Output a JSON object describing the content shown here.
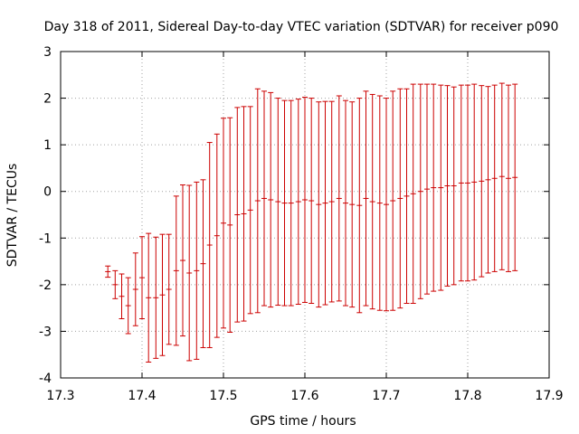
{
  "chart_data": {
    "type": "scatter",
    "title": "Day 318 of 2011, Sidereal Day-to-day VTEC variation (SDTVAR) for receiver p090",
    "xlabel": "GPS time / hours",
    "ylabel": "SDTVAR / TECUs",
    "xlim": [
      17.3,
      17.9
    ],
    "ylim": [
      -4,
      3
    ],
    "x_ticks": [
      "17.3",
      "17.4",
      "17.5",
      "17.6",
      "17.7",
      "17.8",
      "17.9"
    ],
    "y_ticks": [
      "-4",
      "-3",
      "-2",
      "-1",
      "0",
      "1",
      "2",
      "3"
    ],
    "grid": true,
    "error_bars": true,
    "color": "#cc0000",
    "series": [
      {
        "x": [
          17.358,
          17.367,
          17.375,
          17.383,
          17.392,
          17.4,
          17.408,
          17.417,
          17.425,
          17.433,
          17.442,
          17.45,
          17.458,
          17.467,
          17.475,
          17.483,
          17.492,
          17.5,
          17.508,
          17.517,
          17.525,
          17.533,
          17.542,
          17.55,
          17.558,
          17.567,
          17.575,
          17.583,
          17.592,
          17.6,
          17.608,
          17.617,
          17.625,
          17.633,
          17.642,
          17.65,
          17.658,
          17.667,
          17.675,
          17.683,
          17.692,
          17.7,
          17.708,
          17.717,
          17.725,
          17.733,
          17.742,
          17.75,
          17.758,
          17.767,
          17.775,
          17.783,
          17.792,
          17.8,
          17.808,
          17.817,
          17.825,
          17.833,
          17.842,
          17.85,
          17.858
        ],
        "y": [
          -1.72,
          -2.0,
          -2.25,
          -2.45,
          -2.1,
          -1.85,
          -2.28,
          -2.28,
          -2.22,
          -2.1,
          -1.7,
          -1.48,
          -1.75,
          -1.7,
          -1.55,
          -1.15,
          -0.95,
          -0.68,
          -0.72,
          -0.5,
          -0.48,
          -0.4,
          -0.2,
          -0.15,
          -0.18,
          -0.22,
          -0.25,
          -0.25,
          -0.22,
          -0.18,
          -0.2,
          -0.28,
          -0.25,
          -0.22,
          -0.15,
          -0.25,
          -0.28,
          -0.3,
          -0.15,
          -0.22,
          -0.25,
          -0.28,
          -0.2,
          -0.15,
          -0.1,
          -0.05,
          0.0,
          0.05,
          0.08,
          0.08,
          0.12,
          0.12,
          0.18,
          0.18,
          0.2,
          0.22,
          0.25,
          0.28,
          0.32,
          0.28,
          0.3
        ],
        "yerr": [
          0.12,
          0.3,
          0.48,
          0.6,
          0.78,
          0.88,
          1.38,
          1.3,
          1.3,
          1.18,
          1.6,
          1.62,
          1.88,
          1.9,
          1.8,
          2.2,
          2.18,
          2.25,
          2.3,
          2.3,
          2.3,
          2.22,
          2.4,
          2.3,
          2.3,
          2.22,
          2.2,
          2.2,
          2.2,
          2.2,
          2.2,
          2.2,
          2.18,
          2.15,
          2.2,
          2.2,
          2.2,
          2.3,
          2.3,
          2.3,
          2.3,
          2.28,
          2.35,
          2.35,
          2.3,
          2.35,
          2.3,
          2.25,
          2.22,
          2.2,
          2.15,
          2.12,
          2.1,
          2.1,
          2.1,
          2.05,
          2.0,
          2.0,
          2.0,
          2.0,
          2.0
        ]
      }
    ]
  }
}
